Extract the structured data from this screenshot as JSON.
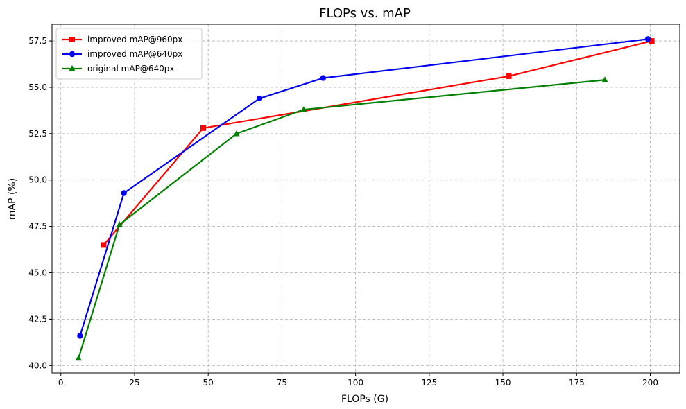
{
  "chart_data": {
    "type": "line",
    "title": "FLOPs vs. mAP",
    "xlabel": "FLOPs (G)",
    "ylabel": "mAP (%)",
    "xlim": [
      -3,
      210
    ],
    "ylim": [
      39.6,
      58.4
    ],
    "xticks": [
      0,
      25,
      50,
      75,
      100,
      125,
      150,
      175,
      200
    ],
    "xtick_labels": [
      "0",
      "25",
      "50",
      "75",
      "100",
      "125",
      "150",
      "175",
      "200"
    ],
    "yticks": [
      40.0,
      42.5,
      45.0,
      47.5,
      50.0,
      52.5,
      55.0,
      57.5
    ],
    "ytick_labels": [
      "40.0",
      "42.5",
      "45.0",
      "47.5",
      "50.0",
      "52.5",
      "55.0",
      "57.5"
    ],
    "grid": true,
    "legend_position": "top-left",
    "series": [
      {
        "name": "improved mAP@960px",
        "color": "#ff0000",
        "marker": "square",
        "x": [
          14.5,
          48.3,
          152.0,
          200.5
        ],
        "y": [
          46.5,
          52.8,
          55.6,
          57.5
        ]
      },
      {
        "name": "improved mAP@640px",
        "color": "#0000ee",
        "marker": "circle",
        "x": [
          6.5,
          21.4,
          67.4,
          89.0,
          199.2
        ],
        "y": [
          41.6,
          49.3,
          54.4,
          55.5,
          57.6
        ]
      },
      {
        "name": "original mAP@640px",
        "color": "#008000",
        "marker": "triangle",
        "x": [
          6.0,
          19.9,
          59.6,
          82.4,
          184.6
        ],
        "y": [
          40.4,
          47.6,
          52.5,
          53.8,
          55.4
        ]
      }
    ]
  }
}
